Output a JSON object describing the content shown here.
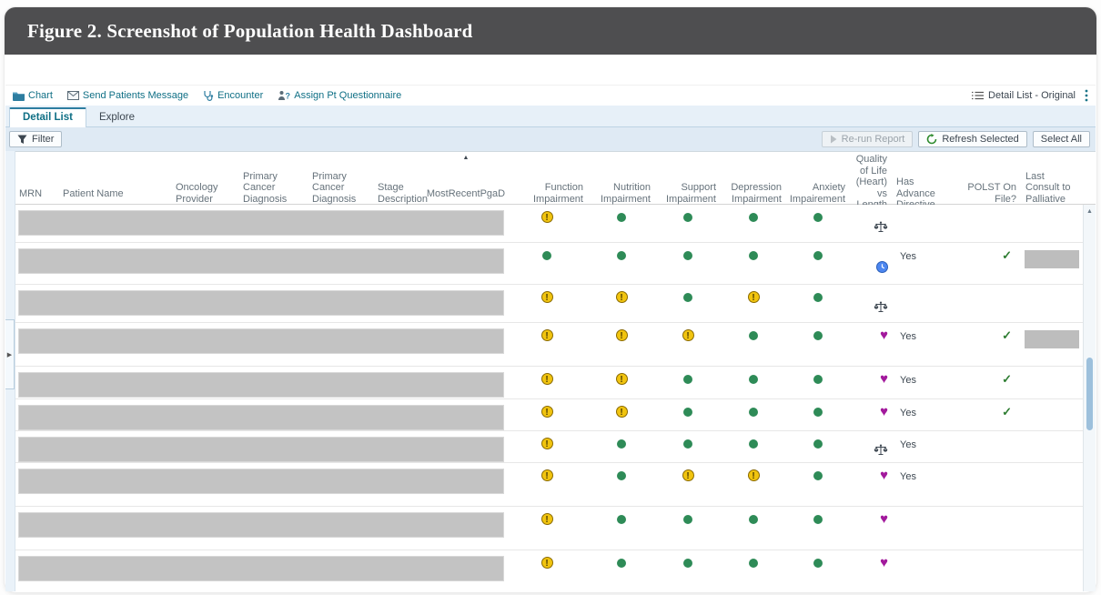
{
  "figure": {
    "title": "Figure 2. Screenshot of Population Health Dashboard"
  },
  "colors": {
    "accent": "#0f6f85",
    "warning": "#f1c40f",
    "ok": "#2e8b57",
    "heart": "#a2199c",
    "clock": "#4c86f0",
    "check": "#2e7d32"
  },
  "toolbar": {
    "left": [
      {
        "label": "Chart",
        "icon": "folder-icon"
      },
      {
        "label": "Send Patients Message",
        "icon": "envelope-icon"
      },
      {
        "label": "Encounter",
        "icon": "stethoscope-icon"
      },
      {
        "label": "Assign Pt Questionnaire",
        "icon": "person-question-icon"
      }
    ],
    "view_label": "Detail List - Original"
  },
  "tabs": [
    {
      "label": "Detail List",
      "active": true
    },
    {
      "label": "Explore",
      "active": false
    }
  ],
  "filter_bar": {
    "filter_label": "Filter",
    "buttons": [
      {
        "label": "Re-run Report",
        "icon": "play-icon",
        "disabled": true
      },
      {
        "label": "Refresh Selected",
        "icon": "refresh-icon",
        "disabled": false
      },
      {
        "label": "Select All",
        "icon": "",
        "disabled": false
      }
    ]
  },
  "table": {
    "columns": [
      {
        "label": "MRN",
        "align": "left",
        "sorted": false
      },
      {
        "label": "Patient Name",
        "align": "left",
        "sorted": false
      },
      {
        "label": "Oncology Provider",
        "align": "left",
        "sorted": false
      },
      {
        "label": "Primary Cancer Diagnosis SubCategory",
        "align": "left",
        "sorted": false
      },
      {
        "label": "Primary Cancer Diagnosis Category",
        "align": "left",
        "sorted": false
      },
      {
        "label": "Stage Description",
        "align": "left",
        "sorted": false
      },
      {
        "label": "MostRecentPgaD",
        "align": "center",
        "sorted": true
      },
      {
        "label": "Function Impairment",
        "align": "right",
        "sorted": false
      },
      {
        "label": "Nutrition Impairment",
        "align": "right",
        "sorted": false
      },
      {
        "label": "Support Impairment",
        "align": "right",
        "sorted": false
      },
      {
        "label": "Depression Impairment",
        "align": "right",
        "sorted": false
      },
      {
        "label": "Anxiety Impairement",
        "align": "right",
        "sorted": false
      },
      {
        "label": "Quality of Life (Heart) vs Length of Life (Clock)",
        "align": "right",
        "sorted": false
      },
      {
        "label": "Has Advance Directive",
        "align": "left",
        "sorted": false
      },
      {
        "label": "POLST On File?",
        "align": "right",
        "sorted": false
      },
      {
        "label": "Last Consult to Palliative Care Order",
        "align": "left",
        "sorted": false
      }
    ],
    "rows": [
      {
        "impairments": [
          "warning",
          "ok",
          "ok",
          "ok",
          "ok"
        ],
        "qol": "scale",
        "advance_directive": "",
        "polst_check": false,
        "last_consult_redacted": false
      },
      {
        "impairments": [
          "ok",
          "ok",
          "ok",
          "ok",
          "ok"
        ],
        "qol": "clock",
        "advance_directive": "Yes",
        "polst_check": true,
        "last_consult_redacted": true
      },
      {
        "impairments": [
          "warning",
          "warning",
          "ok",
          "warning",
          "ok"
        ],
        "qol": "scale",
        "advance_directive": "",
        "polst_check": false,
        "last_consult_redacted": false
      },
      {
        "impairments": [
          "warning",
          "warning",
          "warning",
          "ok",
          "ok"
        ],
        "qol": "heart",
        "advance_directive": "Yes",
        "polst_check": true,
        "last_consult_redacted": true
      },
      {
        "impairments": [
          "warning",
          "warning",
          "ok",
          "ok",
          "ok"
        ],
        "qol": "heart",
        "advance_directive": "Yes",
        "polst_check": true,
        "last_consult_redacted": false
      },
      {
        "impairments": [
          "warning",
          "warning",
          "ok",
          "ok",
          "ok"
        ],
        "qol": "heart",
        "advance_directive": "Yes",
        "polst_check": true,
        "last_consult_redacted": false
      },
      {
        "impairments": [
          "warning",
          "ok",
          "ok",
          "ok",
          "ok"
        ],
        "qol": "scale",
        "advance_directive": "Yes",
        "polst_check": false,
        "last_consult_redacted": false
      },
      {
        "impairments": [
          "warning",
          "ok",
          "warning",
          "warning",
          "ok"
        ],
        "qol": "heart",
        "advance_directive": "Yes",
        "polst_check": false,
        "last_consult_redacted": false
      },
      {
        "impairments": [
          "warning",
          "ok",
          "ok",
          "ok",
          "ok"
        ],
        "qol": "heart",
        "advance_directive": "",
        "polst_check": false,
        "last_consult_redacted": false
      },
      {
        "impairments": [
          "warning",
          "ok",
          "ok",
          "ok",
          "ok"
        ],
        "qol": "heart",
        "advance_directive": "",
        "polst_check": false,
        "last_consult_redacted": false
      }
    ]
  }
}
